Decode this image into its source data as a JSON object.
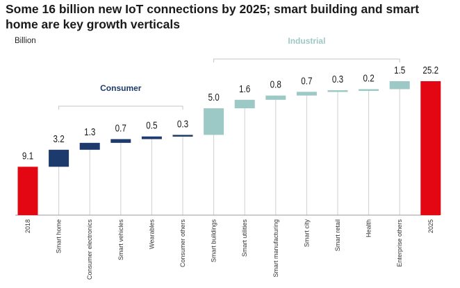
{
  "title": "Some 16 billion new IoT connections by 2025; smart building and smart home are key growth verticals",
  "unit_label": "Billion",
  "groups": {
    "consumer": "Consumer",
    "industrial": "Industrial"
  },
  "colors": {
    "total": "#e30613",
    "consumer": "#1c3a6b",
    "industrial": "#9cc9c5",
    "grid": "#cfcfcf",
    "text": "#1a1a1a"
  },
  "chart_data": {
    "type": "bar",
    "subtype": "waterfall",
    "title": "Some 16 billion new IoT connections by 2025; smart building and smart home are key growth verticals",
    "ylabel": "Billion",
    "categories": [
      "2018",
      "Smart home",
      "Consumer electronics",
      "Smart vehicles",
      "Wearables",
      "Consumer others",
      "Smart buildings",
      "Smart utilities",
      "Smart manufacturing",
      "Smart city",
      "Smart retail",
      "Health",
      "Enterprise others",
      "2025"
    ],
    "values": [
      9.1,
      3.2,
      1.3,
      0.7,
      0.5,
      0.3,
      5.0,
      1.6,
      0.8,
      0.7,
      0.3,
      0.2,
      1.5,
      25.2
    ],
    "labels": [
      "9.1",
      "3.2",
      "1.3",
      "0.7",
      "0.5",
      "0.3",
      "5.0",
      "1.6",
      "0.8",
      "0.7",
      "0.3",
      "0.2",
      "1.5",
      "25.2"
    ],
    "kinds": [
      "total",
      "consumer",
      "consumer",
      "consumer",
      "consumer",
      "consumer",
      "industrial",
      "industrial",
      "industrial",
      "industrial",
      "industrial",
      "industrial",
      "industrial",
      "total"
    ],
    "ylim": [
      0,
      25.2
    ]
  }
}
